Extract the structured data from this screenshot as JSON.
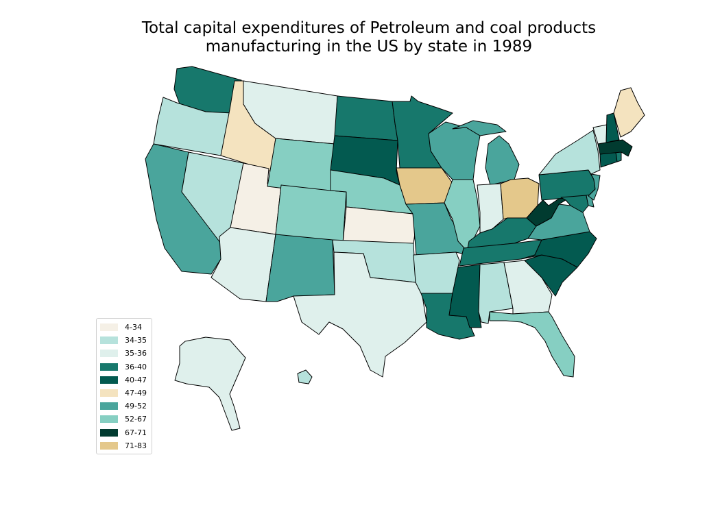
{
  "map": {
    "title_line1": "Total capital expenditures of Petroleum and coal products",
    "title_line2": "manufacturing in the US by state in 1989",
    "legend": [
      {
        "label": "4-34",
        "color": "#f5f0e6"
      },
      {
        "label": "34-35",
        "color": "#b6e2dc"
      },
      {
        "label": "35-36",
        "color": "#dff0ec"
      },
      {
        "label": "36-40",
        "color": "#17786c"
      },
      {
        "label": "40-47",
        "color": "#035a50"
      },
      {
        "label": "47-49",
        "color": "#f4e3bf"
      },
      {
        "label": "49-52",
        "color": "#4aa59c"
      },
      {
        "label": "52-67",
        "color": "#86cfc2"
      },
      {
        "label": "67-71",
        "color": "#013b30"
      },
      {
        "label": "71-83",
        "color": "#e4c88b"
      }
    ],
    "states": [
      {
        "name": "Washington",
        "bin": "36-40"
      },
      {
        "name": "Oregon",
        "bin": "34-35"
      },
      {
        "name": "California",
        "bin": "49-52"
      },
      {
        "name": "Idaho",
        "bin": "47-49"
      },
      {
        "name": "Nevada",
        "bin": "34-35"
      },
      {
        "name": "Utah",
        "bin": "4-34"
      },
      {
        "name": "Arizona",
        "bin": "35-36"
      },
      {
        "name": "Montana",
        "bin": "35-36"
      },
      {
        "name": "Wyoming",
        "bin": "52-67"
      },
      {
        "name": "Colorado",
        "bin": "52-67"
      },
      {
        "name": "New Mexico",
        "bin": "49-52"
      },
      {
        "name": "North Dakota",
        "bin": "36-40"
      },
      {
        "name": "South Dakota",
        "bin": "40-47"
      },
      {
        "name": "Nebraska",
        "bin": "52-67"
      },
      {
        "name": "Kansas",
        "bin": "4-34"
      },
      {
        "name": "Oklahoma",
        "bin": "34-35"
      },
      {
        "name": "Texas",
        "bin": "35-36"
      },
      {
        "name": "Minnesota",
        "bin": "36-40"
      },
      {
        "name": "Iowa",
        "bin": "71-83"
      },
      {
        "name": "Missouri",
        "bin": "49-52"
      },
      {
        "name": "Arkansas",
        "bin": "34-35"
      },
      {
        "name": "Louisiana",
        "bin": "36-40"
      },
      {
        "name": "Wisconsin",
        "bin": "49-52"
      },
      {
        "name": "Illinois",
        "bin": "52-67"
      },
      {
        "name": "Michigan",
        "bin": "49-52"
      },
      {
        "name": "Indiana",
        "bin": "35-36"
      },
      {
        "name": "Ohio",
        "bin": "71-83"
      },
      {
        "name": "Kentucky",
        "bin": "36-40"
      },
      {
        "name": "Tennessee",
        "bin": "36-40"
      },
      {
        "name": "Mississippi",
        "bin": "40-47"
      },
      {
        "name": "Alabama",
        "bin": "34-35"
      },
      {
        "name": "Georgia",
        "bin": "35-36"
      },
      {
        "name": "Florida",
        "bin": "52-67"
      },
      {
        "name": "South Carolina",
        "bin": "40-47"
      },
      {
        "name": "North Carolina",
        "bin": "40-47"
      },
      {
        "name": "Virginia",
        "bin": "49-52"
      },
      {
        "name": "West Virginia",
        "bin": "67-71"
      },
      {
        "name": "Maryland",
        "bin": "36-40"
      },
      {
        "name": "Delaware",
        "bin": "49-52"
      },
      {
        "name": "Pennsylvania",
        "bin": "36-40"
      },
      {
        "name": "New Jersey",
        "bin": "49-52"
      },
      {
        "name": "New York",
        "bin": "34-35"
      },
      {
        "name": "Connecticut",
        "bin": "40-47"
      },
      {
        "name": "Rhode Island",
        "bin": "36-40"
      },
      {
        "name": "Massachusetts",
        "bin": "67-71"
      },
      {
        "name": "Vermont",
        "bin": "35-36"
      },
      {
        "name": "New Hampshire",
        "bin": "40-47"
      },
      {
        "name": "Maine",
        "bin": "47-49"
      },
      {
        "name": "Alaska",
        "bin": "35-36"
      },
      {
        "name": "Hawaii",
        "bin": "34-35"
      }
    ]
  }
}
